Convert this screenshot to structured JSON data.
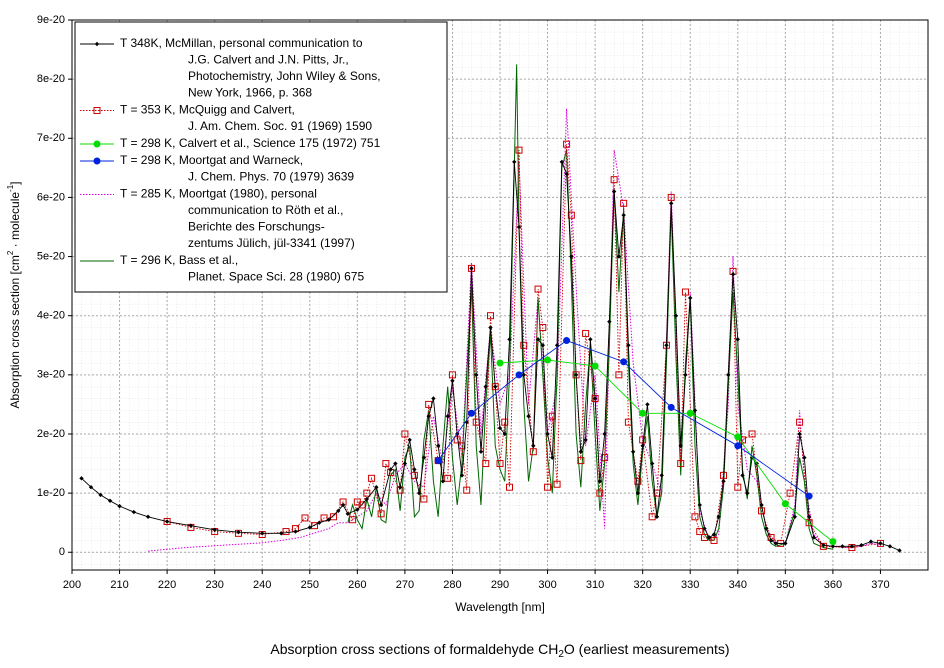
{
  "chart_data": {
    "type": "line",
    "title": [
      "Absorption cross sections of formaldehyde CH",
      "2",
      "O (earliest measurements)"
    ],
    "x_label": "Wavelength [nm]",
    "y_label": [
      "Absorption cross section [cm",
      "2",
      " · molecule",
      "-1",
      "]"
    ],
    "xlim": [
      200,
      380
    ],
    "xticks": [
      200,
      210,
      220,
      230,
      240,
      250,
      260,
      270,
      280,
      290,
      300,
      310,
      320,
      330,
      340,
      350,
      360,
      370
    ],
    "ylim": [
      -3e-21,
      9e-20
    ],
    "yticks": [
      0,
      1e-20,
      2e-20,
      3e-20,
      4e-20,
      5e-20,
      6e-20,
      7e-20,
      8e-20,
      9e-20
    ],
    "grid": true,
    "legend": "upper left",
    "series": [
      {
        "name": [
          "T  348K, McMillan, personal communication to",
          "J.G. Calvert and J.N. Pitts, Jr.,",
          "Photochemistry, John Wiley & Sons,",
          "New York, 1966, p. 368"
        ],
        "color": "#000000",
        "marker": "diamond",
        "dash": "solid",
        "x": [
          202,
          204,
          206,
          208,
          210,
          213,
          216,
          220,
          225,
          230,
          235,
          240,
          244,
          247,
          250,
          252,
          254,
          256,
          257,
          258,
          260,
          262,
          264,
          265,
          267,
          268,
          269,
          270,
          271,
          272,
          273,
          274,
          275,
          276,
          277,
          278,
          279,
          280,
          281,
          282,
          283,
          284,
          285,
          286,
          287,
          288,
          289,
          290,
          291,
          292,
          293,
          294,
          295,
          296,
          297,
          298,
          299,
          300,
          301,
          302,
          303,
          304,
          305,
          306,
          307,
          308,
          309,
          310,
          311,
          312,
          313,
          314,
          315,
          316,
          317,
          318,
          319,
          320,
          321,
          322,
          323,
          324,
          325,
          326,
          327,
          328,
          329,
          330,
          331,
          332,
          333,
          334,
          335,
          336,
          337,
          338,
          339,
          340,
          341,
          342,
          343,
          344,
          345,
          346,
          347,
          348,
          350,
          352,
          353,
          354,
          355,
          356,
          358,
          360,
          362,
          364,
          366,
          368,
          370,
          372,
          374
        ],
        "values": [
          1.25e-20,
          1.1e-20,
          9.7e-21,
          8.7e-21,
          7.8e-21,
          6.8e-21,
          6e-21,
          5.2e-21,
          4.5e-21,
          3.8e-21,
          3.4e-21,
          3.2e-21,
          3.2e-21,
          3.5e-21,
          4.2e-21,
          5e-21,
          5.5e-21,
          7e-21,
          8e-21,
          6.5e-21,
          7.2e-21,
          9e-21,
          1.1e-20,
          8e-21,
          1.4e-20,
          1.5e-20,
          1.1e-20,
          1.5e-20,
          1.9e-20,
          1.4e-20,
          1e-20,
          1.6e-20,
          2.3e-20,
          2.6e-20,
          1.8e-20,
          1.2e-20,
          2.3e-20,
          2.9e-20,
          2e-20,
          1.3e-20,
          2.2e-20,
          4.8e-20,
          3e-20,
          1.7e-20,
          2.8e-20,
          3.8e-20,
          2.8e-20,
          2.1e-20,
          2e-20,
          3.6e-20,
          6.6e-20,
          5.5e-20,
          3e-20,
          2.3e-20,
          1.8e-20,
          3.6e-20,
          3.5e-20,
          2e-20,
          1.6e-20,
          3.5e-20,
          6.6e-20,
          6.4e-20,
          5e-20,
          3e-20,
          1.7e-20,
          1.9e-20,
          3.6e-20,
          2.6e-20,
          1.2e-20,
          2e-20,
          3.9e-20,
          6.1e-20,
          5e-20,
          5.7e-20,
          3.5e-20,
          1.7e-20,
          1e-20,
          1.8e-20,
          2.5e-20,
          1.5e-20,
          6e-21,
          1.3e-20,
          3.5e-20,
          5.9e-20,
          4e-20,
          1.8e-20,
          3e-20,
          4.3e-20,
          2.4e-20,
          8e-21,
          4e-21,
          2.5e-21,
          3e-21,
          6e-21,
          1.2e-20,
          3e-20,
          4.7e-20,
          3.6e-20,
          1.3e-20,
          1e-20,
          1.6e-20,
          1.5e-20,
          8e-21,
          4e-21,
          2e-21,
          1.5e-21,
          1.5e-21,
          6e-21,
          2e-20,
          1.6e-20,
          6e-21,
          2.5e-21,
          1.2e-21,
          1e-21,
          1e-21,
          1e-21,
          1.2e-21,
          1.8e-21,
          1.5e-21,
          1e-21,
          3e-22
        ]
      },
      {
        "name": [
          "T = 353 K, McQuigg and Calvert,",
          "J. Am. Chem. Soc. 91 (1969) 1590"
        ],
        "color": "#cc0000",
        "marker": "square",
        "dash": "dotted",
        "x": [
          220,
          225,
          230,
          235,
          240,
          245,
          247,
          249,
          251,
          253,
          255,
          257,
          259,
          260,
          261,
          262,
          263,
          265,
          266,
          267,
          269,
          270,
          272,
          274,
          275,
          277,
          279,
          280,
          281,
          282,
          283,
          284,
          285,
          287,
          288,
          289,
          290,
          291,
          292,
          294,
          295,
          297,
          298,
          299,
          300,
          301,
          302,
          304,
          305,
          306,
          307,
          308,
          310,
          311,
          312,
          314,
          315,
          316,
          317,
          319,
          320,
          322,
          323,
          325,
          326,
          328,
          329,
          331,
          332,
          333,
          335,
          337,
          339,
          340,
          341,
          343,
          345,
          347,
          349,
          351,
          353,
          355,
          358,
          364,
          370
        ],
        "values": [
          5.2e-21,
          4.2e-21,
          3.5e-21,
          3.2e-21,
          3e-21,
          3.5e-21,
          4e-21,
          5.8e-21,
          4.5e-21,
          5.8e-21,
          6e-21,
          8.5e-21,
          5.5e-21,
          8.5e-21,
          8e-21,
          1e-20,
          1.25e-20,
          6.5e-21,
          1.5e-20,
          1.35e-20,
          1.05e-20,
          2e-20,
          1.3e-20,
          9e-21,
          2.5e-20,
          1.55e-20,
          1.25e-20,
          3e-20,
          1.9e-20,
          1.8e-20,
          1.05e-20,
          4.8e-20,
          2.2e-20,
          1.5e-20,
          4e-20,
          2.8e-20,
          1.5e-20,
          2.2e-20,
          1.1e-20,
          6.8e-20,
          3.5e-20,
          1.7e-20,
          4.45e-20,
          3.8e-20,
          1.1e-20,
          2.3e-20,
          1.15e-20,
          6.9e-20,
          5.7e-20,
          3e-20,
          1.55e-20,
          3.7e-20,
          2.6e-20,
          1e-20,
          1.6e-20,
          6.3e-20,
          3e-20,
          5.9e-20,
          2.2e-20,
          1.2e-20,
          1.9e-20,
          6e-21,
          1e-20,
          3.5e-20,
          6e-20,
          1.5e-20,
          4.4e-20,
          6e-21,
          3.5e-21,
          2.5e-21,
          2e-21,
          1.3e-20,
          4.75e-20,
          1.1e-20,
          1.9e-20,
          2e-20,
          7e-21,
          2.5e-21,
          1.5e-21,
          1e-20,
          2.2e-20,
          5e-21,
          1e-21,
          8e-22,
          1.5e-21
        ]
      },
      {
        "name": [
          "T = 298 K, Calvert et al., Science 175 (1972) 751"
        ],
        "color": "#00dd00",
        "marker": "circle",
        "dash": "solid",
        "x": [
          290,
          300,
          310,
          320,
          330,
          340,
          350,
          360
        ],
        "values": [
          3.2e-20,
          3.25e-20,
          3.15e-20,
          2.35e-20,
          2.35e-20,
          1.95e-20,
          8.2e-21,
          1.8e-21
        ]
      },
      {
        "name": [
          "T = 298 K, Moortgat and Warneck,",
          "J. Chem. Phys. 70 (1979) 3639"
        ],
        "color": "#0022dd",
        "marker": "circle",
        "dash": "solid",
        "x": [
          277,
          284,
          294,
          304,
          316,
          326,
          340,
          355
        ],
        "values": [
          1.55e-20,
          2.35e-20,
          3e-20,
          3.58e-20,
          3.22e-20,
          2.45e-20,
          1.8e-20,
          9.5e-21
        ]
      },
      {
        "name": [
          "T = 285 K, Moortgat (1980), personal",
          "communication to Röth et al.,",
          "Berichte des Forschungs-",
          "zentums Jülich, jül-3341 (1997)"
        ],
        "color": "#dd00dd",
        "marker": "none",
        "dash": "dotted",
        "x": [
          216,
          220,
          224,
          228,
          232,
          236,
          240,
          244,
          248,
          250,
          252,
          254,
          256,
          258,
          260,
          262,
          264,
          266,
          268,
          270,
          272,
          274,
          276,
          278,
          280,
          282,
          284,
          286,
          288,
          290,
          292,
          294,
          296,
          298,
          300,
          302,
          304,
          306,
          308,
          310,
          312,
          314,
          316,
          318,
          320,
          322,
          324,
          326,
          328,
          330,
          332,
          334,
          336,
          338,
          339,
          340,
          342,
          344,
          346,
          348,
          350,
          352,
          353,
          354,
          356,
          358,
          360,
          362,
          364,
          366,
          368,
          370
        ],
        "values": [
          2e-22,
          5e-22,
          8e-22,
          1e-21,
          1.2e-21,
          1.4e-21,
          1.6e-21,
          2e-21,
          2.5e-21,
          3e-21,
          3.5e-21,
          4e-21,
          5e-21,
          5e-21,
          6e-21,
          7e-21,
          1e-20,
          8e-21,
          1.3e-20,
          1.5e-20,
          1.2e-20,
          1.1e-20,
          2.3e-20,
          1.5e-20,
          2.8e-20,
          1.6e-20,
          4.9e-20,
          2e-20,
          3.8e-20,
          2.5e-20,
          3e-20,
          6.6e-20,
          2.5e-20,
          4.3e-20,
          2e-20,
          2.8e-20,
          7.5e-20,
          4.5e-20,
          1.8e-20,
          3e-20,
          4e-21,
          6.8e-20,
          5.8e-20,
          3.2e-20,
          1.9e-20,
          1.5e-20,
          1e-20,
          6.1e-20,
          1.6e-20,
          4.4e-20,
          7e-21,
          2e-21,
          3e-21,
          2.5e-20,
          5e-20,
          2.5e-20,
          1.4e-20,
          1.2e-20,
          4e-21,
          1.5e-21,
          1.5e-21,
          8e-21,
          2.4e-20,
          1.2e-20,
          3e-21,
          1.2e-21,
          1e-21,
          8e-22,
          8e-22,
          1e-21,
          1.5e-21,
          1.2e-21
        ]
      },
      {
        "name": [
          "T = 296 K, Bass et al.,",
          "Planet. Space Sci. 28 (1980) 675"
        ],
        "color": "#006600",
        "marker": "none",
        "dash": "solid",
        "x": [
          258,
          259,
          260,
          261,
          262,
          263,
          264,
          265,
          266,
          267,
          268,
          269,
          270,
          271,
          272,
          273,
          274,
          275,
          276,
          277,
          278,
          279,
          280,
          281,
          282,
          283,
          284,
          285,
          286,
          287,
          288,
          289,
          290,
          291,
          292,
          293,
          293.5,
          294,
          295,
          296,
          297,
          298,
          299,
          300,
          301,
          302,
          303,
          304,
          305,
          306,
          307,
          308,
          309,
          310,
          311,
          312,
          313,
          314,
          315,
          316,
          317,
          318,
          319,
          320,
          321,
          322,
          323,
          324,
          325,
          326,
          327,
          328,
          329,
          330,
          331,
          332,
          333,
          334,
          335,
          336,
          337,
          338,
          339,
          340,
          341,
          342,
          343,
          344,
          345,
          346,
          347,
          348,
          350,
          352,
          353,
          354,
          355,
          356,
          358,
          360
        ],
        "values": [
          5e-21,
          8e-21,
          5.5e-21,
          4e-21,
          9e-21,
          6e-21,
          1.1e-20,
          5.5e-21,
          5e-21,
          1.3e-20,
          1.4e-20,
          7e-21,
          1.6e-20,
          1.8e-20,
          6e-21,
          7e-21,
          1.9e-20,
          2.4e-20,
          1.2e-20,
          6e-21,
          1.8e-20,
          2.8e-20,
          1.6e-20,
          8e-21,
          1.5e-20,
          3e-20,
          4.5e-20,
          1.8e-20,
          8e-21,
          2.5e-20,
          3.7e-20,
          1.8e-20,
          1.4e-20,
          1.2e-20,
          3e-20,
          6.5e-20,
          8.25e-20,
          5.5e-20,
          2.5e-20,
          1.2e-20,
          1.8e-20,
          4.3e-20,
          3e-20,
          1.6e-20,
          1e-20,
          3e-20,
          6.5e-20,
          6.8e-20,
          4.6e-20,
          2e-20,
          1.1e-20,
          2.5e-20,
          3.5e-20,
          2e-20,
          7e-21,
          1.5e-20,
          3.5e-20,
          6.1e-20,
          4.4e-20,
          5.8e-20,
          3.2e-20,
          1.5e-20,
          8e-21,
          1.7e-20,
          2.3e-20,
          1.2e-20,
          6e-21,
          1e-20,
          3.2e-20,
          5.8e-20,
          3.3e-20,
          1.3e-20,
          3.2e-20,
          4.3e-20,
          1.8e-20,
          6e-21,
          3e-21,
          2e-21,
          2e-21,
          4e-21,
          1.1e-20,
          2.8e-20,
          4.4e-20,
          3e-20,
          1.4e-20,
          9e-21,
          1.8e-20,
          1.3e-20,
          6e-21,
          3e-21,
          1.5e-21,
          1e-21,
          1.5e-21,
          7e-21,
          1.6e-20,
          1.2e-20,
          4e-21,
          1.5e-21,
          8e-22,
          5e-22
        ]
      }
    ]
  }
}
